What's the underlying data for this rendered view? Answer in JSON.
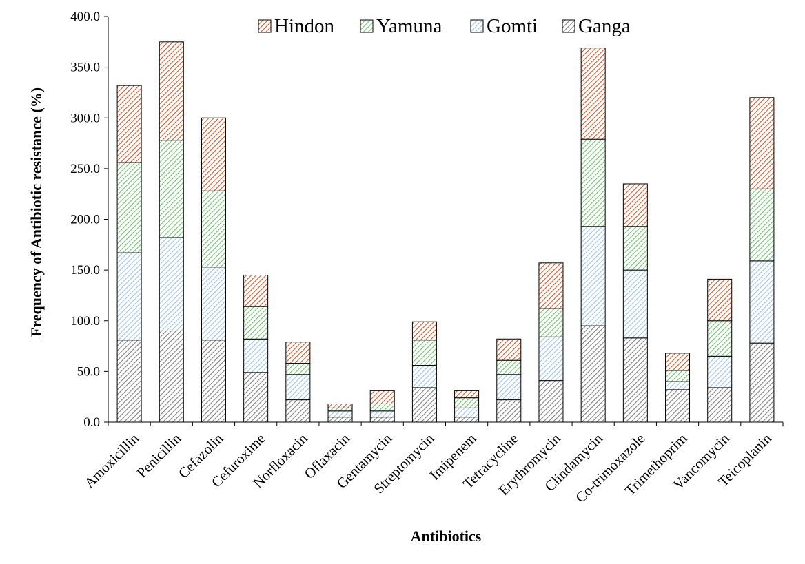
{
  "chart_data": {
    "type": "bar",
    "stacked": true,
    "title": "",
    "xlabel": "Antibiotics",
    "ylabel": "Frequency of Antibiotic resistance (%)",
    "ylim": [
      0,
      400
    ],
    "yticks": [
      "0.0",
      "50.0",
      "100.0",
      "150.0",
      "200.0",
      "250.0",
      "300.0",
      "350.0",
      "400.0"
    ],
    "grid": false,
    "legend_position": "top",
    "categories": [
      "Amoxicillin",
      "Penicillin",
      "Cefazolin",
      "Cefuroxime",
      "Norfloxacin",
      "Oflaxacin",
      "Gentamycin",
      "Streptomycin",
      "Imipenem",
      "Tetracycline",
      "Erythromycin",
      "Clindamycin",
      "Co-trimoxazole",
      "Trimethoprim",
      "Vancomycin",
      "Teicoplanin"
    ],
    "series": [
      {
        "name": "Ganga",
        "color": "#7f7f7f",
        "values": [
          81,
          90,
          81,
          49,
          22,
          5,
          5,
          34,
          5,
          22,
          41,
          95,
          83,
          32,
          34,
          78
        ]
      },
      {
        "name": "Gomti",
        "color": "#9dc3e6",
        "values": [
          86,
          92,
          72,
          33,
          25,
          6,
          6,
          22,
          9,
          25,
          43,
          98,
          67,
          8,
          31,
          81
        ]
      },
      {
        "name": "Yamuna",
        "color": "#70c070",
        "values": [
          89,
          96,
          75,
          32,
          11,
          3,
          7,
          25,
          10,
          14,
          28,
          86,
          43,
          11,
          35,
          71
        ]
      },
      {
        "name": "Hindon",
        "color": "#d05a2a",
        "values": [
          76,
          97,
          72,
          31,
          21,
          4,
          13,
          18,
          7,
          21,
          45,
          90,
          42,
          17,
          41,
          90
        ]
      }
    ],
    "legend_order": [
      "Hindon",
      "Yamuna",
      "Gomti",
      "Ganga"
    ]
  }
}
